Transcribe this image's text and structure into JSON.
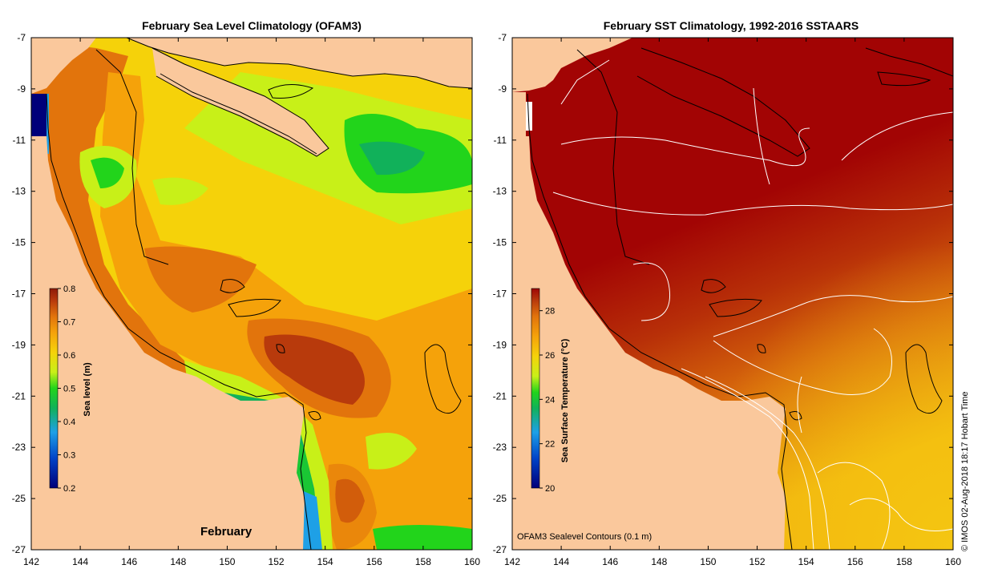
{
  "left_panel": {
    "title": "February Sea Level Climatology (OFAM3)",
    "month_label": "February",
    "colorbar": {
      "title": "Sea level (m)",
      "min": 0.2,
      "max": 0.8,
      "tick_labels": [
        "0.8",
        "0.7",
        "0.6",
        "0.5",
        "0.4",
        "0.3",
        "0.2"
      ],
      "colors": [
        "#00007a",
        "#0044c8",
        "#1ea0e6",
        "#11b15a",
        "#22d41b",
        "#c8f018",
        "#f5d20a",
        "#f5a20a",
        "#e2740c",
        "#b83a0c",
        "#8e1a08"
      ]
    }
  },
  "right_panel": {
    "title": "February SST Climatology, 1992-2016 SSTAARS",
    "contour_note": "OFAM3 Sealevel Contours (0.1 m)",
    "colorbar": {
      "title": "Sea Surface Temperature (°C)",
      "min": 20,
      "max": 29,
      "tick_labels": [
        "28",
        "26",
        "24",
        "22",
        "20"
      ],
      "colors": [
        "#00007a",
        "#0044c8",
        "#1ea0e6",
        "#11b15a",
        "#22d41b",
        "#c8f018",
        "#f5d20a",
        "#f5a20a",
        "#e2740c",
        "#b83a0c",
        "#9e0606"
      ]
    }
  },
  "axes": {
    "lon_ticks": [
      "142",
      "144",
      "146",
      "148",
      "150",
      "152",
      "154",
      "156",
      "158",
      "160"
    ],
    "lat_ticks": [
      "-7",
      "-9",
      "-11",
      "-13",
      "-15",
      "-17",
      "-19",
      "-21",
      "-23",
      "-25",
      "-27"
    ],
    "lon_range": [
      142,
      160
    ],
    "lat_range": [
      -27,
      -7
    ]
  },
  "credit": "© IMOS 02-Aug-2018 18:17 Hobart Time",
  "colors": {
    "land": "#fac89c",
    "sst_ocean": "#a20404",
    "contour": "#ffffff"
  }
}
